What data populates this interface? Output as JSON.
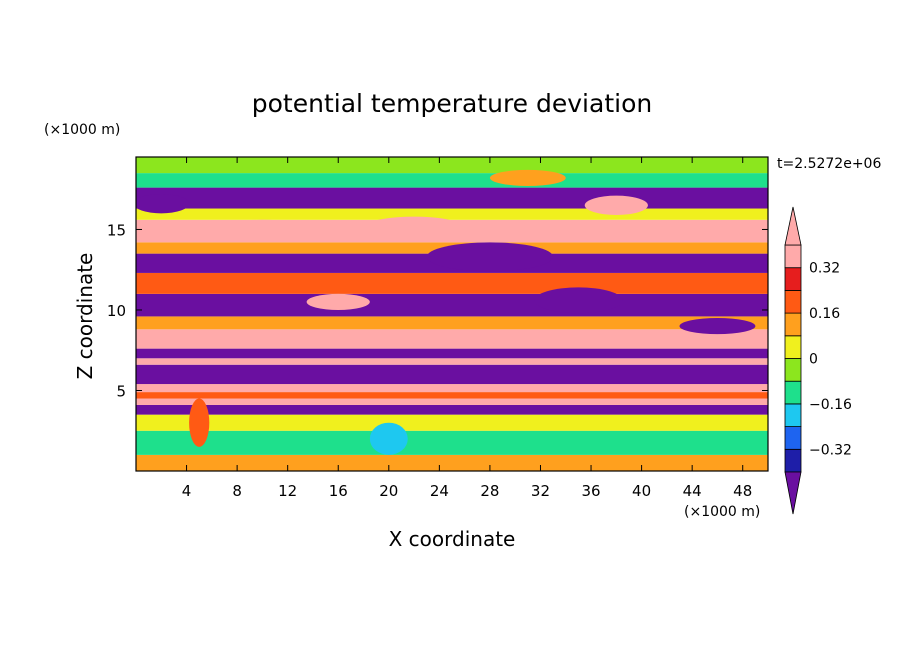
{
  "chart_data": {
    "type": "heatmap",
    "title": "potential temperature deviation",
    "xlabel": "X coordinate",
    "ylabel": "Z coordinate",
    "x_unit": "(×1000 m)",
    "y_unit": "(×1000 m)",
    "time_label": "t=2.5272e+06",
    "xlim": [
      0,
      50
    ],
    "ylim": [
      0,
      19.5
    ],
    "x_ticks": [
      4,
      8,
      12,
      16,
      20,
      24,
      28,
      32,
      36,
      40,
      44,
      48
    ],
    "x_tick_labels": [
      "4",
      "8",
      "12",
      "16",
      "20",
      "24",
      "28",
      "32",
      "36",
      "40",
      "44",
      "48"
    ],
    "y_ticks": [
      5,
      10,
      15
    ],
    "y_tick_labels": [
      "5",
      "10",
      "15"
    ],
    "colorbar": {
      "levels": [
        -0.4,
        -0.32,
        -0.24,
        -0.16,
        -0.08,
        0,
        0.08,
        0.16,
        0.24,
        0.32,
        0.4
      ],
      "tick_values": [
        0.32,
        0.16,
        0,
        -0.16,
        -0.32
      ],
      "tick_labels": [
        "0.32",
        "0.16",
        "0",
        "−0.16",
        "−0.32"
      ],
      "colors": [
        "#6a0fa0",
        "#1e1ea8",
        "#1e64f0",
        "#1ec8f0",
        "#1ee08c",
        "#8ce61e",
        "#f0f01e",
        "#ffa01e",
        "#ff5a14",
        "#e61e1e",
        "#ffaaaa"
      ],
      "extend": "both"
    },
    "bands": [
      {
        "z": [
          0.0,
          1.0
        ],
        "value": 0.16
      },
      {
        "z": [
          1.0,
          2.5
        ],
        "value": -0.08
      },
      {
        "z": [
          2.5,
          3.5
        ],
        "value": 0.08
      },
      {
        "z": [
          3.5,
          4.1
        ],
        "value": -0.4
      },
      {
        "z": [
          4.1,
          4.5
        ],
        "value": 0.4
      },
      {
        "z": [
          4.5,
          4.9
        ],
        "value": 0.24
      },
      {
        "z": [
          4.9,
          5.4
        ],
        "value": 0.4
      },
      {
        "z": [
          5.4,
          6.6
        ],
        "value": -0.4
      },
      {
        "z": [
          6.6,
          7.0
        ],
        "value": 0.4
      },
      {
        "z": [
          7.0,
          7.6
        ],
        "value": -0.4
      },
      {
        "z": [
          7.6,
          8.8
        ],
        "value": 0.4
      },
      {
        "z": [
          8.8,
          9.6
        ],
        "value": 0.16
      },
      {
        "z": [
          9.6,
          11.0
        ],
        "value": -0.4
      },
      {
        "z": [
          11.0,
          12.3
        ],
        "value": 0.24
      },
      {
        "z": [
          12.3,
          13.5
        ],
        "value": -0.4
      },
      {
        "z": [
          13.5,
          14.2
        ],
        "value": 0.16
      },
      {
        "z": [
          14.2,
          15.6
        ],
        "value": 0.4
      },
      {
        "z": [
          15.6,
          16.3
        ],
        "value": 0.08
      },
      {
        "z": [
          16.3,
          17.6
        ],
        "value": -0.4
      },
      {
        "z": [
          17.6,
          18.5
        ],
        "value": -0.08
      },
      {
        "z": [
          18.5,
          19.5
        ],
        "value": 0.0
      }
    ],
    "blobs": [
      {
        "x": 2,
        "z": 16.6,
        "rx": 2.2,
        "rz": 0.6,
        "value": -0.4
      },
      {
        "x": 10,
        "z": 15.2,
        "rx": 3.0,
        "rz": 0.4,
        "value": 0.4
      },
      {
        "x": 22,
        "z": 15.3,
        "rx": 3.5,
        "rz": 0.5,
        "value": 0.4
      },
      {
        "x": 38,
        "z": 16.5,
        "rx": 2.5,
        "rz": 0.6,
        "value": 0.4
      },
      {
        "x": 28,
        "z": 13.3,
        "rx": 5.0,
        "rz": 0.9,
        "value": -0.4
      },
      {
        "x": 16,
        "z": 10.5,
        "rx": 2.5,
        "rz": 0.5,
        "value": 0.4
      },
      {
        "x": 35,
        "z": 10.6,
        "rx": 3.5,
        "rz": 0.8,
        "value": -0.4
      },
      {
        "x": 5,
        "z": 3.0,
        "rx": 0.8,
        "rz": 1.5,
        "value": 0.24
      },
      {
        "x": 20,
        "z": 2.0,
        "rx": 1.5,
        "rz": 1.0,
        "value": -0.16
      },
      {
        "x": 46,
        "z": 9.0,
        "rx": 3.0,
        "rz": 0.5,
        "value": -0.4
      },
      {
        "x": 31,
        "z": 18.2,
        "rx": 3.0,
        "rz": 0.5,
        "value": 0.16
      }
    ]
  }
}
